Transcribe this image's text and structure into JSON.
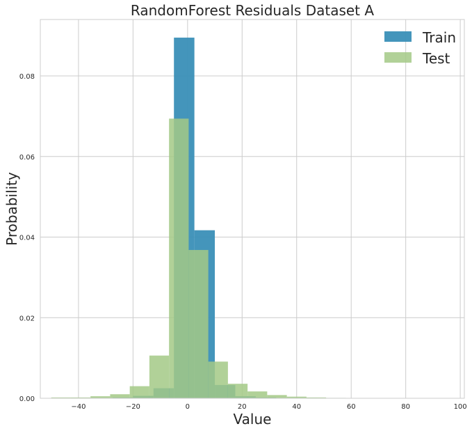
{
  "chart_data": {
    "type": "bar",
    "title": "RandomForest Residuals Dataset A",
    "xlabel": "Value",
    "ylabel": "Probability",
    "xlim": [
      -54,
      101.5
    ],
    "ylim": [
      0,
      0.094
    ],
    "xticks": [
      -40,
      -20,
      0,
      20,
      40,
      60,
      80,
      100
    ],
    "xtick_labels": [
      "−40",
      "−20",
      "0",
      "20",
      "40",
      "60",
      "80",
      "100"
    ],
    "yticks": [
      0,
      0.02,
      0.04,
      0.06,
      0.08
    ],
    "ytick_labels": [
      "0.00",
      "0.02",
      "0.04",
      "0.06",
      "0.08"
    ],
    "grid": true,
    "legend_position": "upper right",
    "series": [
      {
        "name": "Train",
        "color": "#3a8fb7",
        "bin_edges": [
          -50,
          -42.5,
          -35,
          -27.5,
          -20,
          -12.5,
          -5,
          2.5,
          10,
          17.5,
          25,
          32.5,
          40,
          47.5,
          55,
          62.5,
          70,
          77.5,
          85,
          92.5,
          100
        ],
        "values": [
          0,
          0,
          0.0001,
          0.0002,
          0.0006,
          0.0025,
          0.0895,
          0.0417,
          0.0033,
          0.0005,
          0.0002,
          0.0001,
          0.0001,
          0,
          0,
          0,
          0,
          0,
          0,
          0
        ]
      },
      {
        "name": "Test",
        "color": "#a3c986",
        "bin_edges": [
          -50,
          -42.8,
          -35.6,
          -28.4,
          -21.2,
          -14,
          -6.8,
          0.4,
          7.6,
          14.8,
          22,
          29.2,
          36.4,
          43.6,
          50.8,
          58
        ],
        "values": [
          0.0002,
          0.0002,
          0.0005,
          0.001,
          0.003,
          0.0106,
          0.0694,
          0.0368,
          0.0091,
          0.0036,
          0.0017,
          0.0008,
          0.0004,
          0.0002,
          0.0001
        ]
      }
    ]
  }
}
